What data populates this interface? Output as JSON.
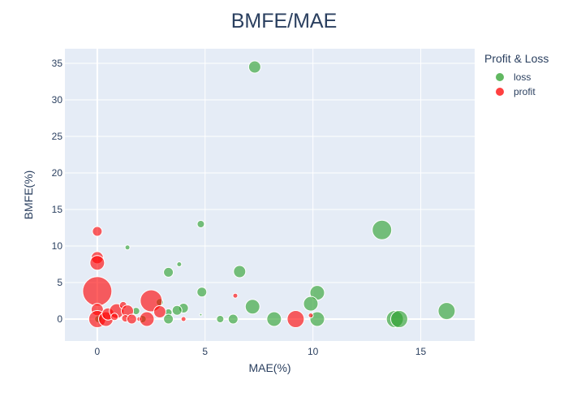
{
  "chart_data": {
    "type": "scatter",
    "title": "BMFE/MAE",
    "xlabel": "MAE(%)",
    "ylabel": "BMFE(%)",
    "xlim": [
      -1.5,
      17.5
    ],
    "ylim": [
      -3,
      37
    ],
    "xticks": [
      0,
      5,
      10,
      15
    ],
    "yticks": [
      0,
      5,
      10,
      15,
      20,
      25,
      30,
      35
    ],
    "grid": true,
    "legend_title": "Profit & Loss",
    "legend_position": "right",
    "series": [
      {
        "name": "loss",
        "color": "#2ca02c",
        "points": [
          {
            "x": 7.3,
            "y": 34.5,
            "size": 5
          },
          {
            "x": 13.2,
            "y": 12.2,
            "size": 8
          },
          {
            "x": 4.8,
            "y": 13.0,
            "size": 3
          },
          {
            "x": 1.4,
            "y": 9.8,
            "size": 2
          },
          {
            "x": 3.8,
            "y": 7.5,
            "size": 2
          },
          {
            "x": 3.3,
            "y": 6.4,
            "size": 4
          },
          {
            "x": 6.6,
            "y": 6.5,
            "size": 5
          },
          {
            "x": 4.85,
            "y": 3.7,
            "size": 4
          },
          {
            "x": 10.2,
            "y": 3.6,
            "size": 6
          },
          {
            "x": 9.9,
            "y": 2.1,
            "size": 6
          },
          {
            "x": 7.2,
            "y": 1.7,
            "size": 6
          },
          {
            "x": 16.2,
            "y": 1.1,
            "size": 7
          },
          {
            "x": 4.0,
            "y": 1.5,
            "size": 4
          },
          {
            "x": 3.7,
            "y": 1.2,
            "size": 4
          },
          {
            "x": 2.9,
            "y": 2.3,
            "size": 3
          },
          {
            "x": 1.8,
            "y": 1.1,
            "size": 3
          },
          {
            "x": 3.3,
            "y": 0.9,
            "size": 3
          },
          {
            "x": 4.8,
            "y": 0.6,
            "size": 1
          },
          {
            "x": 3.3,
            "y": 0.0,
            "size": 4
          },
          {
            "x": 5.7,
            "y": 0.0,
            "size": 3
          },
          {
            "x": 6.3,
            "y": 0.0,
            "size": 4
          },
          {
            "x": 8.2,
            "y": 0.0,
            "size": 6
          },
          {
            "x": 10.2,
            "y": 0.0,
            "size": 6
          },
          {
            "x": 13.8,
            "y": 0.0,
            "size": 7
          },
          {
            "x": 14.0,
            "y": 0.0,
            "size": 7
          },
          {
            "x": 2.1,
            "y": 0.0,
            "size": 3
          },
          {
            "x": 0.05,
            "y": 0.0,
            "size": 3
          }
        ]
      },
      {
        "name": "profit",
        "color": "#ff0000",
        "points": [
          {
            "x": 0.0,
            "y": 3.8,
            "size": 12
          },
          {
            "x": 2.5,
            "y": 2.5,
            "size": 9
          },
          {
            "x": 0.0,
            "y": 12.0,
            "size": 4
          },
          {
            "x": 0.0,
            "y": 8.4,
            "size": 5
          },
          {
            "x": 0.0,
            "y": 7.7,
            "size": 6
          },
          {
            "x": 0.0,
            "y": 1.3,
            "size": 5
          },
          {
            "x": 0.0,
            "y": 0.0,
            "size": 7
          },
          {
            "x": 0.4,
            "y": 0.0,
            "size": 6
          },
          {
            "x": 0.5,
            "y": 0.7,
            "size": 5
          },
          {
            "x": 0.9,
            "y": 1.1,
            "size": 6
          },
          {
            "x": 0.8,
            "y": 0.3,
            "size": 3
          },
          {
            "x": 1.2,
            "y": 1.9,
            "size": 3
          },
          {
            "x": 1.4,
            "y": 1.1,
            "size": 5
          },
          {
            "x": 1.3,
            "y": 0.1,
            "size": 3
          },
          {
            "x": 1.6,
            "y": 0.0,
            "size": 4
          },
          {
            "x": 1.95,
            "y": 0.0,
            "size": 2
          },
          {
            "x": 2.3,
            "y": 0.0,
            "size": 6
          },
          {
            "x": 2.9,
            "y": 1.0,
            "size": 5
          },
          {
            "x": 4.0,
            "y": 0.0,
            "size": 2
          },
          {
            "x": 6.4,
            "y": 3.2,
            "size": 2
          },
          {
            "x": 9.2,
            "y": 0.0,
            "size": 7
          },
          {
            "x": 9.9,
            "y": 0.5,
            "size": 2
          }
        ]
      }
    ]
  }
}
